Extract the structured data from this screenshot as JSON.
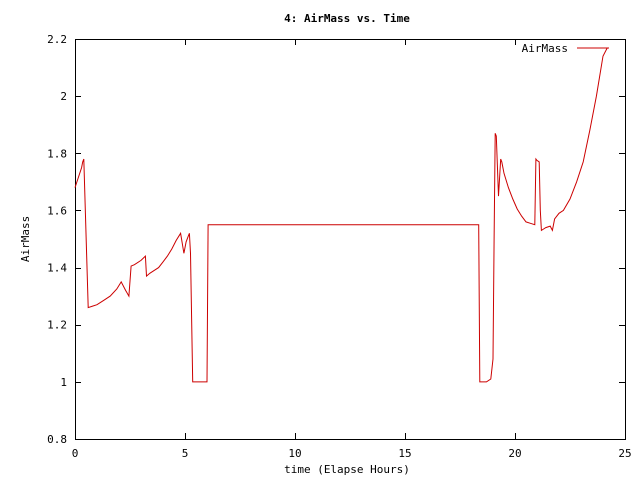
{
  "chart_data": {
    "type": "line",
    "title": "4: AirMass vs. Time",
    "xlabel": "time (Elapse Hours)",
    "ylabel": "AirMass",
    "xlim": [
      0,
      25
    ],
    "ylim": [
      0.8,
      2.2
    ],
    "xticks": [
      0,
      5,
      10,
      15,
      20,
      25
    ],
    "yticks": [
      0.8,
      1,
      1.2,
      1.4,
      1.6,
      1.8,
      2,
      2.2
    ],
    "xtick_labels": [
      "0",
      "5",
      "10",
      "15",
      "20",
      "25"
    ],
    "ytick_labels": [
      "0.8",
      "1",
      "1.2",
      "1.4",
      "1.6",
      "1.8",
      "2",
      "2.2"
    ],
    "grid": false,
    "legend_position": "top-right",
    "colors": {
      "series": "#cc0000",
      "axis": "#000000",
      "background": "#ffffff"
    },
    "series": [
      {
        "name": "AirMass",
        "x": [
          0,
          0.3,
          0.35,
          0.4,
          0.6,
          0.8,
          1.0,
          1.3,
          1.6,
          1.9,
          2.1,
          2.3,
          2.45,
          2.55,
          2.7,
          3.0,
          3.2,
          3.25,
          3.4,
          3.6,
          3.8,
          4.0,
          4.2,
          4.4,
          4.6,
          4.8,
          4.95,
          5.0,
          5.05,
          5.15,
          5.2,
          5.25,
          5.35,
          5.4,
          5.45,
          6.0,
          6.05,
          7.0,
          10.0,
          14.0,
          18.0,
          18.35,
          18.4,
          18.5,
          18.7,
          18.9,
          19.0,
          19.05,
          19.1,
          19.15,
          19.25,
          19.35,
          19.4,
          19.45,
          19.5,
          19.7,
          19.9,
          20.1,
          20.3,
          20.5,
          20.7,
          20.9,
          20.95,
          21.0,
          21.1,
          21.15,
          21.2,
          21.3,
          21.4,
          21.6,
          21.7,
          21.8,
          22.0,
          22.2,
          22.5,
          22.8,
          23.1,
          23.4,
          23.7,
          24.0,
          24.2
        ],
        "values": [
          1.68,
          1.75,
          1.77,
          1.78,
          1.26,
          1.265,
          1.27,
          1.285,
          1.3,
          1.325,
          1.35,
          1.32,
          1.3,
          1.405,
          1.41,
          1.425,
          1.44,
          1.37,
          1.38,
          1.39,
          1.4,
          1.42,
          1.44,
          1.465,
          1.495,
          1.52,
          1.45,
          1.47,
          1.49,
          1.51,
          1.52,
          1.45,
          1.0,
          1.0,
          1.0,
          1.0,
          1.55,
          1.55,
          1.55,
          1.55,
          1.55,
          1.55,
          1.0,
          1.0,
          1.0,
          1.01,
          1.08,
          1.5,
          1.87,
          1.86,
          1.65,
          1.78,
          1.77,
          1.75,
          1.73,
          1.68,
          1.64,
          1.605,
          1.58,
          1.56,
          1.555,
          1.55,
          1.78,
          1.775,
          1.77,
          1.6,
          1.53,
          1.535,
          1.54,
          1.545,
          1.53,
          1.57,
          1.59,
          1.6,
          1.64,
          1.7,
          1.77,
          1.88,
          2.0,
          2.14,
          2.17
        ]
      }
    ]
  }
}
